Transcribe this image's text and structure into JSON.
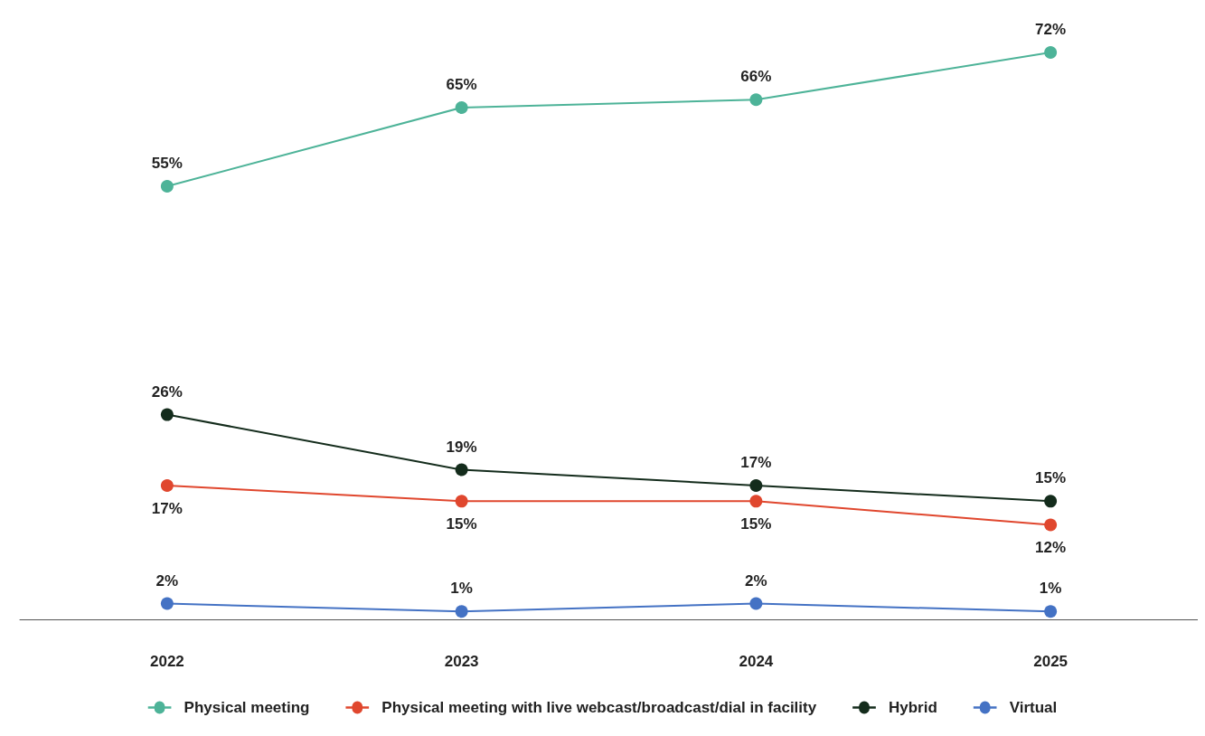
{
  "chart_data": {
    "type": "line",
    "categories": [
      "2022",
      "2023",
      "2024",
      "2025"
    ],
    "series": [
      {
        "name": "Physical meeting",
        "color": "#4db398",
        "values": [
          55,
          65,
          66,
          72
        ],
        "value_labels": [
          "55%",
          "65%",
          "66%",
          "72%"
        ]
      },
      {
        "name": "Physical meeting with live webcast/broadcast/dial in facility",
        "color": "#e0472e",
        "values": [
          17,
          15,
          15,
          12
        ],
        "value_labels": [
          "17%",
          "15%",
          "15%",
          "12%"
        ]
      },
      {
        "name": "Hybrid",
        "color": "#142c1c",
        "values": [
          26,
          19,
          17,
          15
        ],
        "value_labels": [
          "26%",
          "19%",
          "17%",
          "15%"
        ]
      },
      {
        "name": "Virtual",
        "color": "#4472c4",
        "values": [
          2,
          1,
          2,
          1
        ],
        "value_labels": [
          "2%",
          "1%",
          "2%",
          "1%"
        ]
      }
    ],
    "marker": "circle",
    "line_style": "solid",
    "legend": "bottom",
    "grid": false
  }
}
